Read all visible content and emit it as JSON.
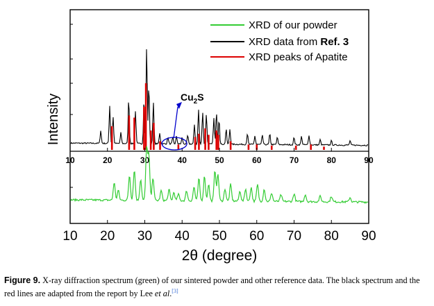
{
  "chart_data": {
    "type": "line",
    "xlabel": "2θ (degree)",
    "ylabel": "Intensity",
    "xlim": [
      10,
      90
    ],
    "x_ticks": [
      "10",
      "20",
      "30",
      "40",
      "50",
      "60",
      "70",
      "80",
      "90"
    ],
    "upper_axis_ticks": [
      "10",
      "20",
      "30",
      "40",
      "50",
      "60",
      "70",
      "80",
      "90"
    ],
    "legend_position": "top-right",
    "legend": [
      {
        "name": "XRD of our powder",
        "color": "#33cc33"
      },
      {
        "name_prefix": "XRD data from ",
        "name_bold": "Ref. 3",
        "color": "#000000"
      },
      {
        "name": "XRD peaks of Apatite",
        "color": "#dd0000"
      }
    ],
    "annotation": {
      "text": "Cu",
      "subscript": "2",
      "suffix": "S",
      "target_x": 37.0,
      "arrow_color": "#0000cc"
    },
    "series": [
      {
        "name": "XRD of our powder",
        "color": "#33cc33",
        "baseline": 0.1,
        "noise": 0.035,
        "peaks": [
          {
            "x": 21.8,
            "h": 0.32
          },
          {
            "x": 22.9,
            "h": 0.18
          },
          {
            "x": 25.9,
            "h": 0.45
          },
          {
            "x": 27.2,
            "h": 0.55
          },
          {
            "x": 28.9,
            "h": 0.38
          },
          {
            "x": 30.5,
            "h": 0.95
          },
          {
            "x": 31.1,
            "h": 0.8
          },
          {
            "x": 32.2,
            "h": 0.42
          },
          {
            "x": 34.4,
            "h": 0.18
          },
          {
            "x": 36.5,
            "h": 0.2
          },
          {
            "x": 37.8,
            "h": 0.15
          },
          {
            "x": 39.0,
            "h": 0.12
          },
          {
            "x": 41.2,
            "h": 0.18
          },
          {
            "x": 43.2,
            "h": 0.25
          },
          {
            "x": 44.5,
            "h": 0.4
          },
          {
            "x": 46.0,
            "h": 0.45
          },
          {
            "x": 47.1,
            "h": 0.3
          },
          {
            "x": 48.8,
            "h": 0.55
          },
          {
            "x": 49.6,
            "h": 0.48
          },
          {
            "x": 51.5,
            "h": 0.22
          },
          {
            "x": 53.0,
            "h": 0.3
          },
          {
            "x": 55.5,
            "h": 0.18
          },
          {
            "x": 57.0,
            "h": 0.22
          },
          {
            "x": 58.5,
            "h": 0.25
          },
          {
            "x": 60.2,
            "h": 0.3
          },
          {
            "x": 62.0,
            "h": 0.22
          },
          {
            "x": 64.0,
            "h": 0.15
          },
          {
            "x": 66.5,
            "h": 0.12
          },
          {
            "x": 70.0,
            "h": 0.14
          },
          {
            "x": 73.0,
            "h": 0.13
          },
          {
            "x": 77.0,
            "h": 0.1
          },
          {
            "x": 80.0,
            "h": 0.1
          },
          {
            "x": 85.0,
            "h": 0.08
          }
        ]
      },
      {
        "name": "XRD data from Ref. 3",
        "color": "#000000",
        "baseline": 0.05,
        "peaks": [
          {
            "x": 18.2,
            "h": 0.12
          },
          {
            "x": 20.6,
            "h": 0.35
          },
          {
            "x": 21.5,
            "h": 0.25
          },
          {
            "x": 23.6,
            "h": 0.1
          },
          {
            "x": 25.7,
            "h": 0.42
          },
          {
            "x": 27.5,
            "h": 0.3
          },
          {
            "x": 29.8,
            "h": 0.42
          },
          {
            "x": 30.5,
            "h": 0.9
          },
          {
            "x": 31.1,
            "h": 0.55
          },
          {
            "x": 32.3,
            "h": 0.38
          },
          {
            "x": 34.0,
            "h": 0.1
          },
          {
            "x": 36.2,
            "h": 0.06
          },
          {
            "x": 37.5,
            "h": 0.06
          },
          {
            "x": 38.5,
            "h": 0.07
          },
          {
            "x": 40.0,
            "h": 0.06
          },
          {
            "x": 41.5,
            "h": 0.08
          },
          {
            "x": 43.3,
            "h": 0.18
          },
          {
            "x": 44.4,
            "h": 0.32
          },
          {
            "x": 45.5,
            "h": 0.3
          },
          {
            "x": 46.5,
            "h": 0.28
          },
          {
            "x": 48.5,
            "h": 0.24
          },
          {
            "x": 49.2,
            "h": 0.3
          },
          {
            "x": 49.9,
            "h": 0.24
          },
          {
            "x": 51.8,
            "h": 0.14
          },
          {
            "x": 52.8,
            "h": 0.14
          },
          {
            "x": 57.5,
            "h": 0.1
          },
          {
            "x": 59.5,
            "h": 0.08
          },
          {
            "x": 61.5,
            "h": 0.09
          },
          {
            "x": 63.5,
            "h": 0.1
          },
          {
            "x": 65.5,
            "h": 0.07
          },
          {
            "x": 70.0,
            "h": 0.07
          },
          {
            "x": 72.0,
            "h": 0.08
          },
          {
            "x": 74.0,
            "h": 0.09
          },
          {
            "x": 77.0,
            "h": 0.05
          },
          {
            "x": 80.0,
            "h": 0.04
          },
          {
            "x": 85.0,
            "h": 0.04
          }
        ]
      },
      {
        "name": "XRD peaks of Apatite",
        "color": "#dd0000",
        "type": "stick",
        "peaks": [
          {
            "x": 21.2,
            "h": 0.22
          },
          {
            "x": 25.8,
            "h": 0.32
          },
          {
            "x": 27.2,
            "h": 0.3
          },
          {
            "x": 29.8,
            "h": 0.4
          },
          {
            "x": 30.3,
            "h": 0.62
          },
          {
            "x": 31.6,
            "h": 0.18
          },
          {
            "x": 32.4,
            "h": 0.25
          },
          {
            "x": 34.1,
            "h": 0.08
          },
          {
            "x": 39.0,
            "h": 0.05
          },
          {
            "x": 43.5,
            "h": 0.12
          },
          {
            "x": 44.5,
            "h": 0.15
          },
          {
            "x": 46.2,
            "h": 0.2
          },
          {
            "x": 47.1,
            "h": 0.14
          },
          {
            "x": 49.2,
            "h": 0.18
          },
          {
            "x": 49.7,
            "h": 0.14
          },
          {
            "x": 53.0,
            "h": 0.08
          },
          {
            "x": 57.8,
            "h": 0.05
          },
          {
            "x": 60.0,
            "h": 0.05
          },
          {
            "x": 64.0,
            "h": 0.04
          },
          {
            "x": 70.5,
            "h": 0.04
          },
          {
            "x": 74.5,
            "h": 0.05
          },
          {
            "x": 78.0,
            "h": 0.03
          }
        ]
      }
    ]
  },
  "caption": {
    "label": "Figure 9.",
    "text_before": " X-ray diffraction spectrum (green) of our sintered powder and other reference data. The black spectrum and the red lines are adapted from the report by Lee ",
    "et_al": "et al",
    "text_after": ".",
    "ref": "[3]"
  }
}
